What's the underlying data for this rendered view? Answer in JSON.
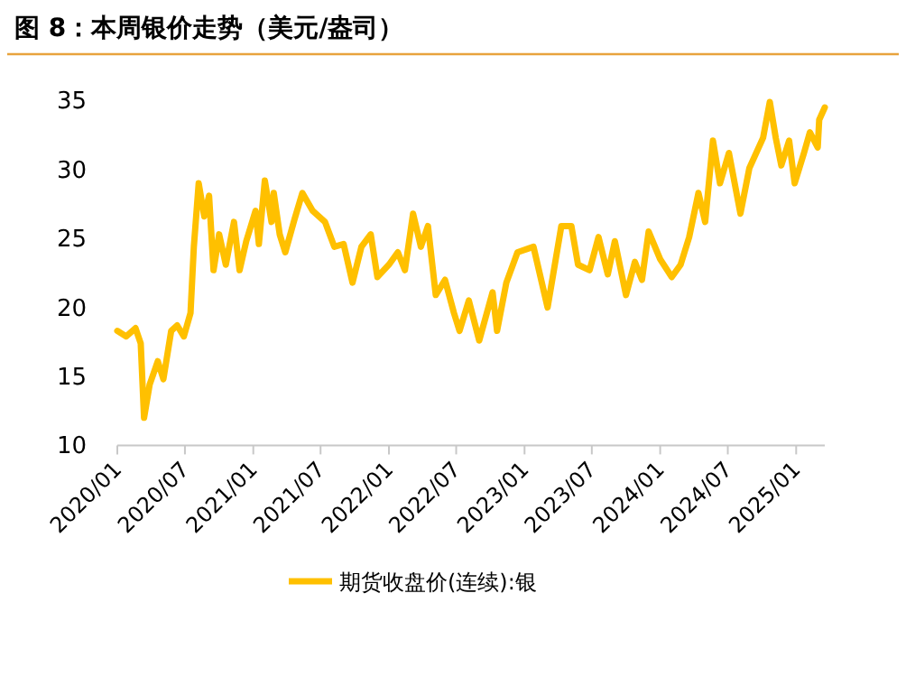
{
  "chart_data": {
    "type": "line",
    "title": "图 8：本周银价走势（美元/盎司）",
    "x": [
      "2020-01-01",
      "2020-01-25",
      "2020-02-19",
      "2020-03-04",
      "2020-03-13",
      "2020-03-28",
      "2020-04-19",
      "2020-05-04",
      "2020-05-25",
      "2020-06-10",
      "2020-06-28",
      "2020-07-16",
      "2020-07-25",
      "2020-08-07",
      "2020-08-22",
      "2020-09-04",
      "2020-09-16",
      "2020-10-01",
      "2020-10-19",
      "2020-11-10",
      "2020-11-25",
      "2020-12-13",
      "2021-01-07",
      "2021-01-16",
      "2021-02-01",
      "2021-02-19",
      "2021-02-25",
      "2021-03-13",
      "2021-03-28",
      "2021-04-22",
      "2021-05-13",
      "2021-06-10",
      "2021-07-13",
      "2021-08-07",
      "2021-09-01",
      "2021-09-25",
      "2021-10-19",
      "2021-11-13",
      "2021-12-01",
      "2022-01-01",
      "2022-01-25",
      "2022-02-13",
      "2022-03-07",
      "2022-03-28",
      "2022-04-16",
      "2022-05-07",
      "2022-06-01",
      "2022-06-25",
      "2022-07-10",
      "2022-08-04",
      "2022-09-01",
      "2022-10-07",
      "2022-10-19",
      "2022-11-13",
      "2022-12-13",
      "2023-01-25",
      "2023-03-04",
      "2023-04-10",
      "2023-05-07",
      "2023-05-25",
      "2023-06-25",
      "2023-07-19",
      "2023-08-13",
      "2023-09-01",
      "2023-10-01",
      "2023-10-25",
      "2023-11-13",
      "2023-12-01",
      "2024-01-01",
      "2024-02-01",
      "2024-02-25",
      "2024-03-19",
      "2024-04-13",
      "2024-05-01",
      "2024-05-22",
      "2024-06-10",
      "2024-07-04",
      "2024-08-04",
      "2024-08-28",
      "2024-10-04",
      "2024-10-22",
      "2024-11-07",
      "2024-11-22",
      "2024-12-13",
      "2024-12-28",
      "2025-01-22",
      "2025-02-07",
      "2025-02-28",
      "2025-03-04",
      "2025-03-19"
    ],
    "series": [
      {
        "name": "期货收盘价(连续):银",
        "color": "#ffc000",
        "values": [
          18.3,
          17.9,
          18.5,
          17.4,
          12.0,
          14.4,
          16.1,
          14.8,
          18.3,
          18.7,
          17.9,
          19.6,
          24.4,
          29.0,
          26.6,
          28.1,
          22.7,
          25.3,
          23.1,
          26.2,
          22.7,
          24.8,
          27.0,
          24.6,
          29.2,
          26.2,
          28.3,
          25.3,
          24.0,
          26.4,
          28.3,
          27.0,
          26.2,
          24.4,
          24.6,
          21.8,
          24.4,
          25.3,
          22.2,
          23.1,
          24.0,
          22.7,
          26.8,
          24.4,
          25.9,
          20.9,
          22.0,
          19.6,
          18.3,
          20.5,
          17.6,
          21.1,
          18.3,
          21.8,
          24.0,
          24.4,
          20.0,
          25.9,
          25.9,
          23.1,
          22.7,
          25.1,
          22.4,
          24.8,
          20.9,
          23.3,
          22.0,
          25.5,
          23.5,
          22.2,
          23.1,
          25.1,
          28.3,
          26.2,
          32.1,
          29.0,
          31.2,
          26.8,
          30.1,
          32.3,
          34.9,
          32.3,
          30.3,
          32.1,
          29.0,
          31.2,
          32.7,
          31.6,
          33.6,
          34.5
        ]
      }
    ],
    "xlim": [
      "2020-01-01",
      "2025-03-19"
    ],
    "xticks": [
      {
        "value": "2020-01-01",
        "label": "2020/01"
      },
      {
        "value": "2020-07-01",
        "label": "2020/07"
      },
      {
        "value": "2021-01-01",
        "label": "2021/01"
      },
      {
        "value": "2021-07-01",
        "label": "2021/07"
      },
      {
        "value": "2022-01-01",
        "label": "2022/01"
      },
      {
        "value": "2022-07-01",
        "label": "2022/07"
      },
      {
        "value": "2023-01-01",
        "label": "2023/01"
      },
      {
        "value": "2023-07-01",
        "label": "2023/07"
      },
      {
        "value": "2024-01-01",
        "label": "2024/01"
      },
      {
        "value": "2024-07-01",
        "label": "2024/07"
      },
      {
        "value": "2025-01-01",
        "label": "2025/01"
      }
    ],
    "ylim": [
      10,
      35
    ],
    "yticks": [
      10,
      15,
      20,
      25,
      30,
      35
    ],
    "legend": "bottom",
    "line_style": "solid"
  }
}
